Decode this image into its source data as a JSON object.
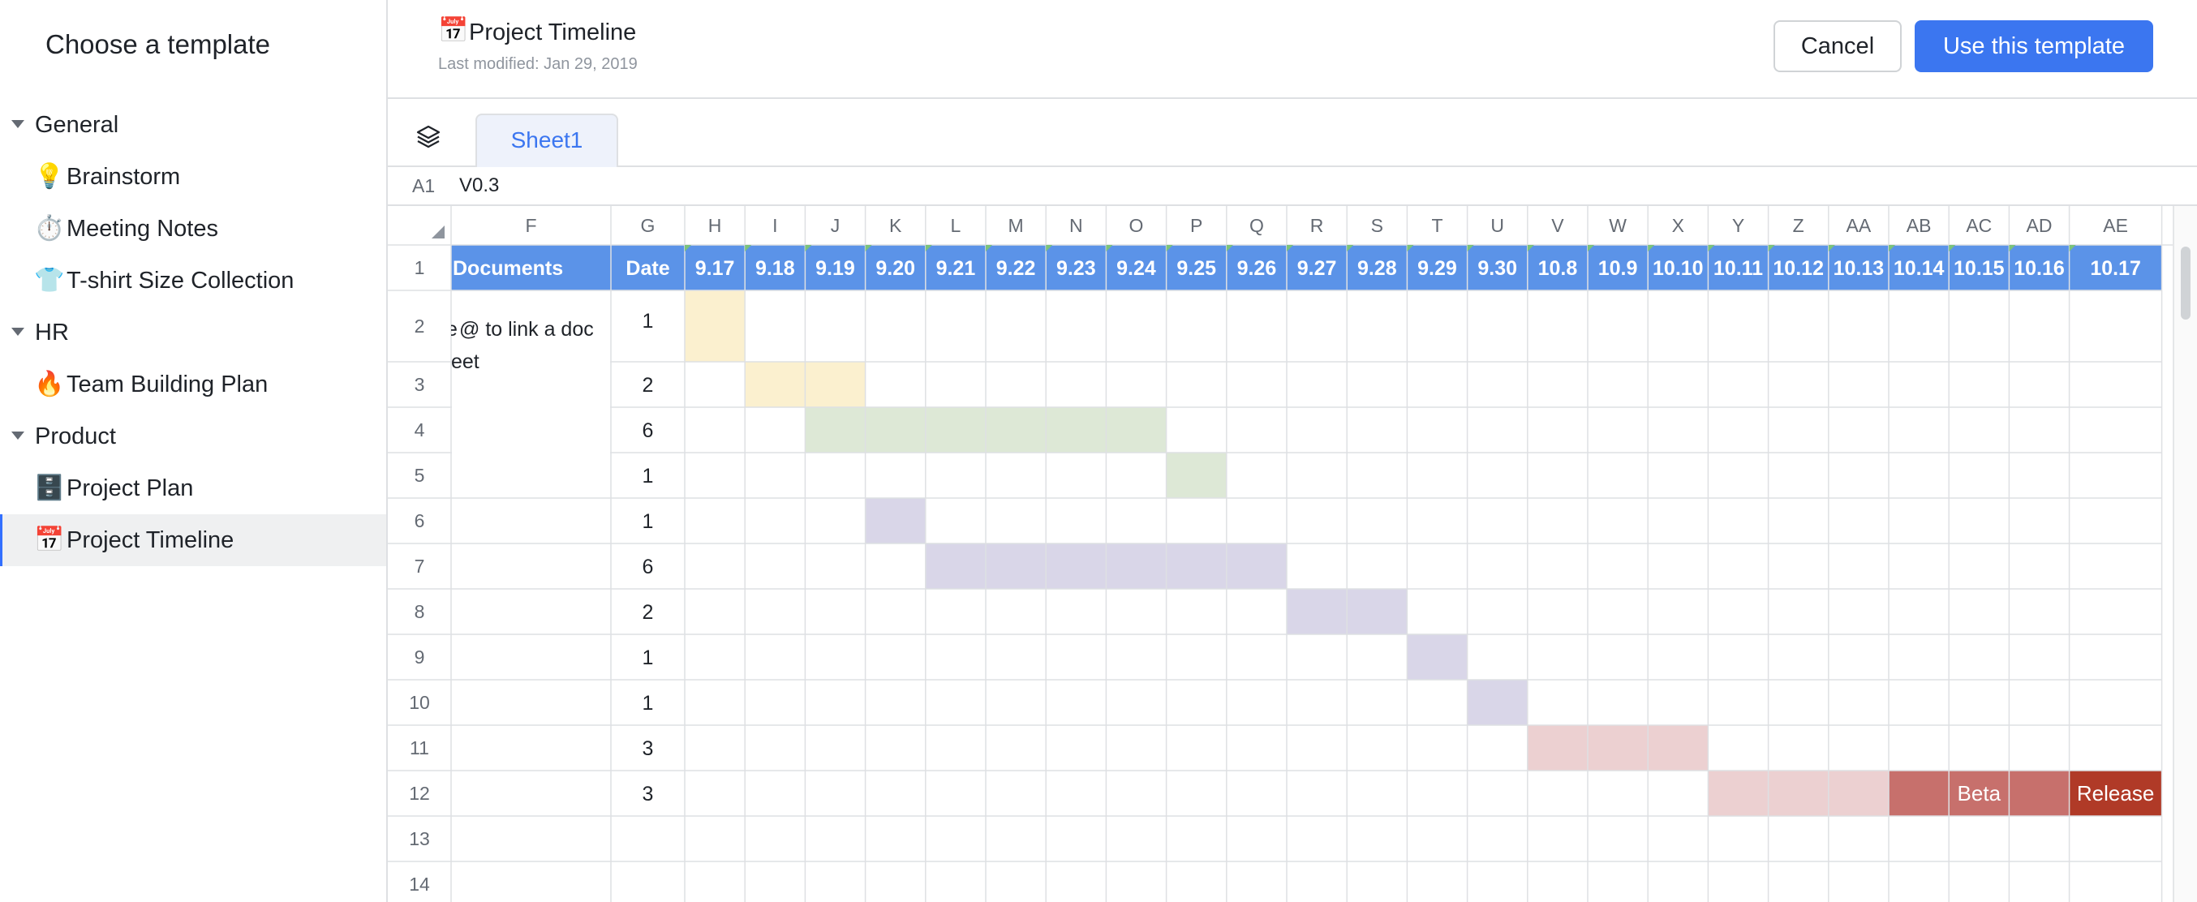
{
  "sidebar": {
    "title": "Choose a template",
    "groups": [
      {
        "label": "General",
        "items": [
          {
            "emoji": "💡",
            "label": "Brainstorm"
          },
          {
            "emoji": "⏱️",
            "label": "Meeting Notes"
          },
          {
            "emoji": "👕",
            "label": "T-shirt Size Collection"
          }
        ]
      },
      {
        "label": "HR",
        "items": [
          {
            "emoji": "🔥",
            "label": "Team Building Plan"
          }
        ]
      },
      {
        "label": "Product",
        "items": [
          {
            "emoji": "🗄️",
            "label": "Project Plan"
          },
          {
            "emoji": "📅",
            "label": "Project Timeline",
            "active": true
          }
        ]
      }
    ]
  },
  "header": {
    "emoji": "📅",
    "title": "Project Timeline",
    "subtitle": "Last modified: Jan 29, 2019",
    "cancel_label": "Cancel",
    "use_label": "Use this template"
  },
  "tabs": {
    "layers_icon": "layers-icon",
    "sheets": [
      "Sheet1"
    ]
  },
  "formula_bar": {
    "cell_ref": "A1",
    "cell_value": "V0.3"
  },
  "sheet": {
    "columns": [
      "F",
      "G",
      "H",
      "I",
      "J",
      "K",
      "L",
      "M",
      "N",
      "O",
      "P",
      "Q",
      "R",
      "S",
      "T",
      "U",
      "V",
      "W",
      "X",
      "Y",
      "Z",
      "AA",
      "AB",
      "AC",
      "AD",
      "AE"
    ],
    "header_row": {
      "documents": "Documents",
      "date": "Date",
      "dates": [
        "9.17",
        "9.18",
        "9.19",
        "9.20",
        "9.21",
        "9.22",
        "9.23",
        "9.24",
        "9.25",
        "9.26",
        "9.27",
        "9.28",
        "9.29",
        "9.30",
        "10.8",
        "10.9",
        "10.10",
        "10.11",
        "10.12",
        "10.13",
        "10.14",
        "10.15",
        "10.16",
        "10.17"
      ]
    },
    "row_numbers": [
      "1",
      "2",
      "3",
      "4",
      "5",
      "6",
      "7",
      "8",
      "9",
      "10",
      "11",
      "12",
      "13",
      "14"
    ],
    "docs_note": "@ to link a doc\neet",
    "durations": [
      "1",
      "2",
      "6",
      "1",
      "1",
      "6",
      "2",
      "1",
      "1",
      "3",
      "3"
    ],
    "gantt": [
      {
        "row": 2,
        "start": 0,
        "len": 1,
        "color": "#fbf0cf"
      },
      {
        "row": 3,
        "start": 1,
        "len": 2,
        "color": "#fbf0cf"
      },
      {
        "row": 4,
        "start": 2,
        "len": 6,
        "color": "#dde8d6"
      },
      {
        "row": 5,
        "start": 8,
        "len": 1,
        "color": "#dde8d6"
      },
      {
        "row": 6,
        "start": 3,
        "len": 1,
        "color": "#d9d6e8"
      },
      {
        "row": 7,
        "start": 4,
        "len": 6,
        "color": "#d9d6e8"
      },
      {
        "row": 8,
        "start": 10,
        "len": 2,
        "color": "#d9d6e8"
      },
      {
        "row": 9,
        "start": 12,
        "len": 1,
        "color": "#d9d6e8"
      },
      {
        "row": 10,
        "start": 13,
        "len": 1,
        "color": "#d9d6e8"
      },
      {
        "row": 11,
        "start": 14,
        "len": 3,
        "color": "#ecd0d1"
      },
      {
        "row": 12,
        "start": 17,
        "len": 3,
        "color": "#ecd0d1"
      },
      {
        "row": 12,
        "start": 20,
        "len": 3,
        "color": "#c7706c",
        "label": "Beta"
      },
      {
        "row": 12,
        "start": 23,
        "len": 1,
        "color": "#b03a27",
        "label": "Release"
      }
    ],
    "colors": {
      "header_fill": "#5b93e8",
      "header_text": "#ffffff",
      "grid_line": "#dee0e3"
    }
  }
}
